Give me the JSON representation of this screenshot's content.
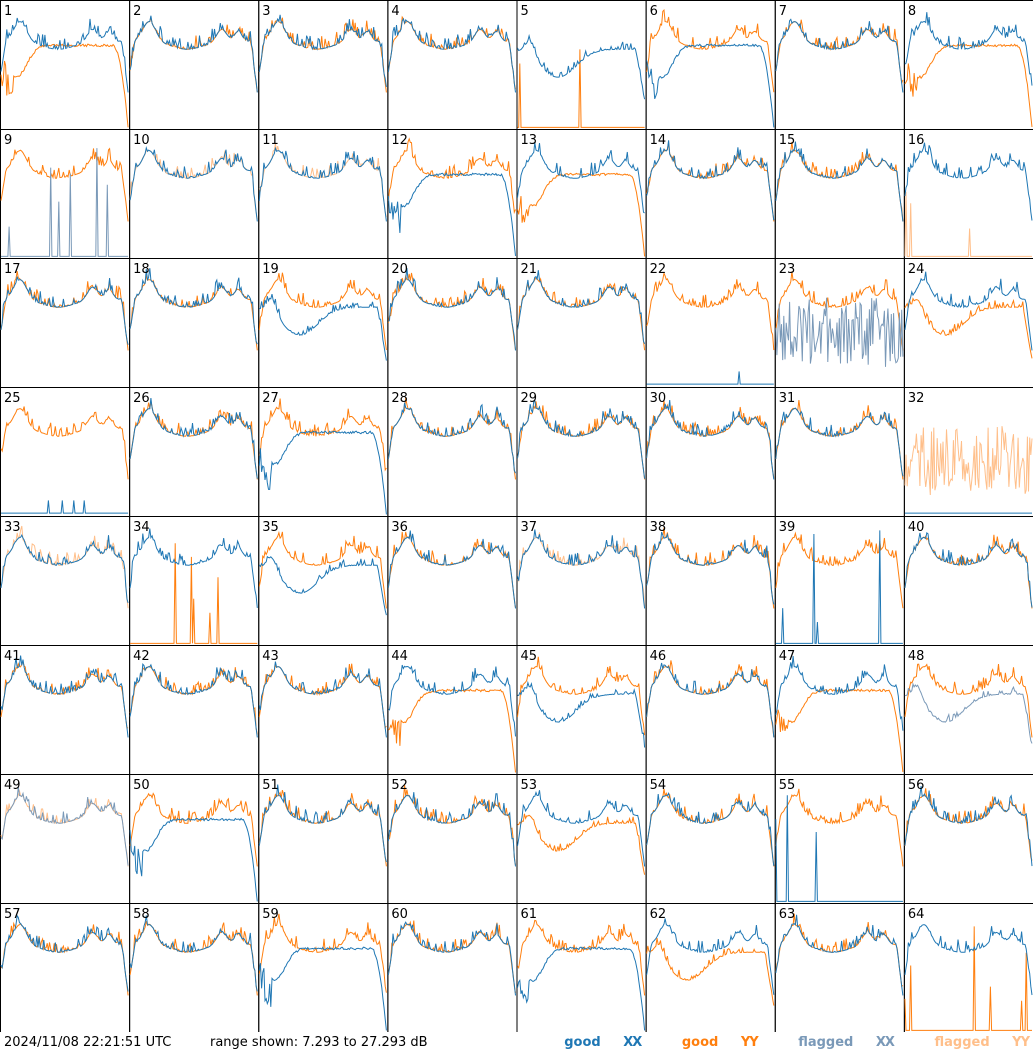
{
  "footer": {
    "timestamp": "2024/11/08 22:21:51 UTC",
    "range_text": "range shown: 7.293 to 27.293 dB"
  },
  "legend": [
    {
      "key": "good_xx",
      "label_a": "good",
      "label_b": "XX",
      "color": "#1f77b4"
    },
    {
      "key": "good_yy",
      "label_a": "good",
      "label_b": "YY",
      "color": "#ff7f0e"
    },
    {
      "key": "flagged_xx",
      "label_a": "flagged",
      "label_b": "XX",
      "color": "#7a99b8"
    },
    {
      "key": "flagged_yy",
      "label_a": "flagged",
      "label_b": "YY",
      "color": "#ffbf8a"
    }
  ],
  "chart_data": {
    "type": "line",
    "grid": "8x8 small multiples",
    "units": "dB",
    "y_range": [
      7.293,
      27.293
    ],
    "panels": [
      {
        "id": "1",
        "xx": "good",
        "yy": "good",
        "xx_shape": "bandpass",
        "yy_shape": "bowl"
      },
      {
        "id": "2",
        "xx": "good",
        "yy": "good",
        "xx_shape": "bandpass",
        "yy_shape": "bandpass"
      },
      {
        "id": "3",
        "xx": "good",
        "yy": "good",
        "xx_shape": "bandpass",
        "yy_shape": "bandpass"
      },
      {
        "id": "4",
        "xx": "good",
        "yy": "good",
        "xx_shape": "bandpass",
        "yy_shape": "bandpass"
      },
      {
        "id": "5",
        "xx": "good",
        "yy": "good",
        "xx_shape": "dip",
        "yy_shape": "spikes"
      },
      {
        "id": "6",
        "xx": "good",
        "yy": "good",
        "xx_shape": "bowl",
        "yy_shape": "bandpass"
      },
      {
        "id": "7",
        "xx": "good",
        "yy": "good",
        "xx_shape": "bandpass",
        "yy_shape": "bandpass"
      },
      {
        "id": "8",
        "xx": "good",
        "yy": "good",
        "xx_shape": "bandpass",
        "yy_shape": "bowl"
      },
      {
        "id": "9",
        "xx": "flagged",
        "yy": "good",
        "xx_shape": "spikes",
        "yy_shape": "bandpass"
      },
      {
        "id": "10",
        "xx": "good",
        "yy": "flagged",
        "xx_shape": "bandpass",
        "yy_shape": "bandpass"
      },
      {
        "id": "11",
        "xx": "good",
        "yy": "flagged",
        "xx_shape": "bandpass",
        "yy_shape": "bandpass"
      },
      {
        "id": "12",
        "xx": "good",
        "yy": "good",
        "xx_shape": "bowl",
        "yy_shape": "bandpass"
      },
      {
        "id": "13",
        "xx": "good",
        "yy": "good",
        "xx_shape": "bandpass",
        "yy_shape": "bowl"
      },
      {
        "id": "14",
        "xx": "good",
        "yy": "good",
        "xx_shape": "bandpass",
        "yy_shape": "bandpass"
      },
      {
        "id": "15",
        "xx": "good",
        "yy": "good",
        "xx_shape": "bandpass",
        "yy_shape": "bandpass"
      },
      {
        "id": "16",
        "xx": "good",
        "yy": "flagged",
        "xx_shape": "bandpass",
        "yy_shape": "spikes"
      },
      {
        "id": "17",
        "xx": "good",
        "yy": "good",
        "xx_shape": "bandpass",
        "yy_shape": "bandpass"
      },
      {
        "id": "18",
        "xx": "good",
        "yy": "good",
        "xx_shape": "bandpass",
        "yy_shape": "bandpass"
      },
      {
        "id": "19",
        "xx": "good",
        "yy": "good",
        "xx_shape": "dip",
        "yy_shape": "bandpass"
      },
      {
        "id": "20",
        "xx": "good",
        "yy": "good",
        "xx_shape": "bandpass",
        "yy_shape": "bandpass"
      },
      {
        "id": "21",
        "xx": "good",
        "yy": "good",
        "xx_shape": "bandpass",
        "yy_shape": "bandpass"
      },
      {
        "id": "22",
        "xx": "good",
        "yy": "good",
        "xx_shape": "flat-low",
        "yy_shape": "bandpass"
      },
      {
        "id": "23",
        "xx": "flagged",
        "yy": "good",
        "xx_shape": "noisy",
        "yy_shape": "bandpass"
      },
      {
        "id": "24",
        "xx": "good",
        "yy": "good",
        "xx_shape": "bandpass",
        "yy_shape": "dip"
      },
      {
        "id": "25",
        "xx": "good",
        "yy": "good",
        "xx_shape": "flat-low",
        "yy_shape": "bandpass"
      },
      {
        "id": "26",
        "xx": "good",
        "yy": "good",
        "xx_shape": "bandpass",
        "yy_shape": "bandpass"
      },
      {
        "id": "27",
        "xx": "good",
        "yy": "good",
        "xx_shape": "bowl",
        "yy_shape": "bandpass"
      },
      {
        "id": "28",
        "xx": "good",
        "yy": "good",
        "xx_shape": "bandpass",
        "yy_shape": "bandpass"
      },
      {
        "id": "29",
        "xx": "good",
        "yy": "good",
        "xx_shape": "bandpass",
        "yy_shape": "bandpass"
      },
      {
        "id": "30",
        "xx": "good",
        "yy": "good",
        "xx_shape": "bandpass",
        "yy_shape": "bandpass"
      },
      {
        "id": "31",
        "xx": "good",
        "yy": "good",
        "xx_shape": "bandpass",
        "yy_shape": "bandpass"
      },
      {
        "id": "32",
        "xx": "good",
        "yy": "flagged",
        "xx_shape": "flat-low",
        "yy_shape": "noisy"
      },
      {
        "id": "33",
        "xx": "good",
        "yy": "flagged",
        "xx_shape": "bandpass",
        "yy_shape": "bandpass"
      },
      {
        "id": "34",
        "xx": "good",
        "yy": "good",
        "xx_shape": "bandpass",
        "yy_shape": "spikes"
      },
      {
        "id": "35",
        "xx": "good",
        "yy": "good",
        "xx_shape": "dip",
        "yy_shape": "bandpass"
      },
      {
        "id": "36",
        "xx": "good",
        "yy": "good",
        "xx_shape": "bandpass",
        "yy_shape": "bandpass"
      },
      {
        "id": "37",
        "xx": "good",
        "yy": "flagged",
        "xx_shape": "bandpass",
        "yy_shape": "bandpass"
      },
      {
        "id": "38",
        "xx": "good",
        "yy": "good",
        "xx_shape": "bandpass",
        "yy_shape": "bandpass"
      },
      {
        "id": "39",
        "xx": "good",
        "yy": "good",
        "xx_shape": "spikes",
        "yy_shape": "bandpass"
      },
      {
        "id": "40",
        "xx": "good",
        "yy": "good",
        "xx_shape": "bandpass",
        "yy_shape": "bandpass"
      },
      {
        "id": "41",
        "xx": "good",
        "yy": "good",
        "xx_shape": "bandpass",
        "yy_shape": "bandpass"
      },
      {
        "id": "42",
        "xx": "good",
        "yy": "good",
        "xx_shape": "bandpass",
        "yy_shape": "bandpass"
      },
      {
        "id": "43",
        "xx": "good",
        "yy": "good",
        "xx_shape": "bandpass",
        "yy_shape": "bandpass"
      },
      {
        "id": "44",
        "xx": "good",
        "yy": "good",
        "xx_shape": "bandpass",
        "yy_shape": "bowl"
      },
      {
        "id": "45",
        "xx": "good",
        "yy": "good",
        "xx_shape": "dip",
        "yy_shape": "bandpass"
      },
      {
        "id": "46",
        "xx": "good",
        "yy": "good",
        "xx_shape": "bandpass",
        "yy_shape": "bandpass"
      },
      {
        "id": "47",
        "xx": "good",
        "yy": "good",
        "xx_shape": "bandpass",
        "yy_shape": "bowl"
      },
      {
        "id": "48",
        "xx": "flagged",
        "yy": "good",
        "xx_shape": "dip",
        "yy_shape": "bandpass"
      },
      {
        "id": "49",
        "xx": "flagged",
        "yy": "flagged",
        "xx_shape": "bandpass",
        "yy_shape": "bandpass"
      },
      {
        "id": "50",
        "xx": "good",
        "yy": "good",
        "xx_shape": "bowl",
        "yy_shape": "bandpass"
      },
      {
        "id": "51",
        "xx": "good",
        "yy": "good",
        "xx_shape": "bandpass",
        "yy_shape": "bandpass"
      },
      {
        "id": "52",
        "xx": "good",
        "yy": "good",
        "xx_shape": "bandpass",
        "yy_shape": "bandpass"
      },
      {
        "id": "53",
        "xx": "good",
        "yy": "good",
        "xx_shape": "bandpass",
        "yy_shape": "dip"
      },
      {
        "id": "54",
        "xx": "good",
        "yy": "good",
        "xx_shape": "bandpass",
        "yy_shape": "bandpass"
      },
      {
        "id": "55",
        "xx": "good",
        "yy": "good",
        "xx_shape": "spikes",
        "yy_shape": "bandpass"
      },
      {
        "id": "56",
        "xx": "good",
        "yy": "good",
        "xx_shape": "bandpass",
        "yy_shape": "bandpass"
      },
      {
        "id": "57",
        "xx": "good",
        "yy": "good",
        "xx_shape": "bandpass",
        "yy_shape": "bandpass"
      },
      {
        "id": "58",
        "xx": "good",
        "yy": "good",
        "xx_shape": "bandpass",
        "yy_shape": "bandpass"
      },
      {
        "id": "59",
        "xx": "good",
        "yy": "good",
        "xx_shape": "bowl",
        "yy_shape": "bandpass"
      },
      {
        "id": "60",
        "xx": "good",
        "yy": "good",
        "xx_shape": "bandpass",
        "yy_shape": "bandpass"
      },
      {
        "id": "61",
        "xx": "good",
        "yy": "good",
        "xx_shape": "bowl",
        "yy_shape": "bandpass"
      },
      {
        "id": "62",
        "xx": "good",
        "yy": "good",
        "xx_shape": "bandpass",
        "yy_shape": "dip"
      },
      {
        "id": "63",
        "xx": "good",
        "yy": "good",
        "xx_shape": "bandpass",
        "yy_shape": "bandpass"
      },
      {
        "id": "64",
        "xx": "good",
        "yy": "good",
        "xx_shape": "bandpass",
        "yy_shape": "spikes"
      }
    ]
  }
}
